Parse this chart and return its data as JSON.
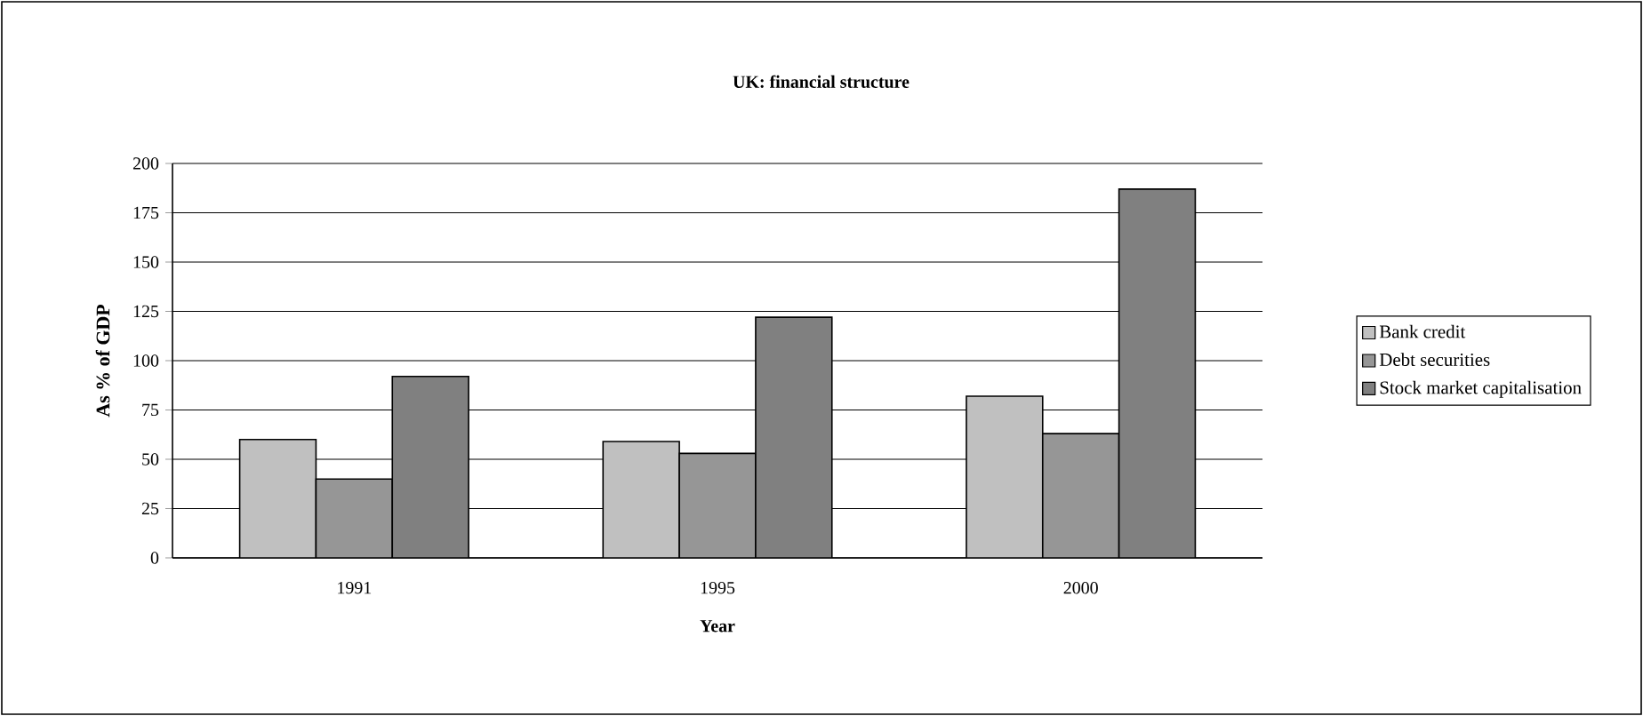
{
  "chart_data": {
    "type": "bar",
    "title": "UK: financial structure",
    "xlabel": "Year",
    "ylabel": "As % of GDP",
    "categories": [
      "1991",
      "1995",
      "2000"
    ],
    "series": [
      {
        "name": "Bank credit",
        "color": "#c0c0c0",
        "values": [
          60,
          59,
          82
        ]
      },
      {
        "name": "Debt securities",
        "color": "#969696",
        "values": [
          40,
          53,
          63
        ]
      },
      {
        "name": "Stock market capitalisation",
        "color": "#808080",
        "values": [
          92,
          122,
          187
        ]
      }
    ],
    "ylim": [
      0,
      200
    ],
    "yticks": [
      0,
      25,
      50,
      75,
      100,
      125,
      150,
      175,
      200
    ],
    "grid": "y",
    "legend": "right"
  }
}
